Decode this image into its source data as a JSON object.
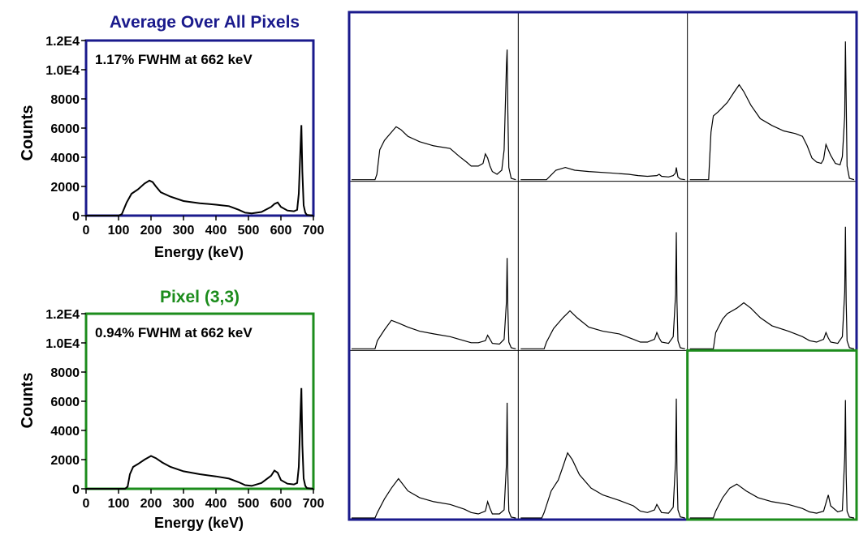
{
  "colors": {
    "average_frame": "#1a1a8c",
    "pixel_frame": "#1c8c1c",
    "grid_lines": "#000000",
    "trace": "#000000"
  },
  "chart_data": [
    {
      "type": "line",
      "id": "average",
      "title": "Average Over All Pixels",
      "annotation": "1.17% FWHM at 662 keV",
      "xlabel": "Energy (keV)",
      "ylabel": "Counts",
      "xlim": [
        0,
        700
      ],
      "ylim": [
        0,
        12000
      ],
      "x_ticks": [
        "0",
        "100",
        "200",
        "300",
        "400",
        "500",
        "600",
        "700"
      ],
      "y_ticks": [
        "0",
        "2000",
        "4000",
        "6000",
        "8000",
        "1.0E4",
        "1.2E4"
      ],
      "frame_color": "#1a1a8c",
      "series": [
        {
          "x": [
            0,
            100,
            110,
            125,
            140,
            160,
            180,
            195,
            205,
            215,
            230,
            260,
            300,
            350,
            400,
            440,
            470,
            490,
            510,
            540,
            570,
            580,
            590,
            600,
            620,
            640,
            650,
            655,
            660,
            663,
            666,
            670,
            675,
            680,
            700
          ],
          "y": [
            0,
            0,
            100,
            900,
            1500,
            1800,
            2200,
            2400,
            2300,
            2000,
            1600,
            1300,
            1000,
            850,
            750,
            650,
            400,
            200,
            150,
            250,
            600,
            800,
            900,
            600,
            350,
            300,
            400,
            1500,
            4500,
            6200,
            3000,
            700,
            200,
            50,
            0
          ]
        }
      ]
    },
    {
      "type": "line",
      "id": "pixel-3-3",
      "title": "Pixel (3,3)",
      "annotation": "0.94% FWHM at 662 keV",
      "xlabel": "Energy (keV)",
      "ylabel": "Counts",
      "xlim": [
        0,
        700
      ],
      "ylim": [
        0,
        12000
      ],
      "x_ticks": [
        "0",
        "100",
        "200",
        "300",
        "400",
        "500",
        "600",
        "700"
      ],
      "y_ticks": [
        "0",
        "2000",
        "4000",
        "6000",
        "8000",
        "1.0E4",
        "1.2E4"
      ],
      "frame_color": "#1c8c1c",
      "series": [
        {
          "x": [
            0,
            120,
            128,
            135,
            145,
            160,
            180,
            200,
            215,
            235,
            260,
            300,
            350,
            400,
            440,
            470,
            490,
            510,
            540,
            570,
            580,
            590,
            600,
            620,
            640,
            650,
            655,
            660,
            663,
            666,
            670,
            675,
            680,
            700
          ],
          "y": [
            0,
            0,
            150,
            1000,
            1500,
            1700,
            2000,
            2250,
            2100,
            1800,
            1500,
            1200,
            1000,
            850,
            700,
            450,
            250,
            200,
            400,
            900,
            1250,
            1100,
            600,
            350,
            300,
            400,
            1500,
            5000,
            6900,
            3000,
            700,
            200,
            50,
            0
          ]
        }
      ]
    },
    {
      "type": "line",
      "id": "pixel-grid",
      "rows": 3,
      "cols": 3,
      "highlight_cell": [
        3,
        3
      ],
      "xlim": [
        0,
        700
      ],
      "ylim": [
        0,
        12000
      ],
      "cells": [
        {
          "x": [
            0,
            100,
            108,
            120,
            140,
            160,
            190,
            210,
            240,
            290,
            350,
            420,
            460,
            490,
            510,
            540,
            560,
            570,
            580,
            590,
            600,
            620,
            640,
            650,
            660,
            663,
            666,
            670,
            680,
            700
          ],
          "y": [
            0,
            0,
            400,
            2200,
            2900,
            3300,
            3900,
            3700,
            3200,
            2800,
            2500,
            2300,
            1700,
            1300,
            1000,
            1000,
            1200,
            1900,
            1600,
            1000,
            600,
            400,
            700,
            2200,
            8500,
            9600,
            5000,
            900,
            100,
            0
          ]
        },
        {
          "x": [
            0,
            110,
            150,
            190,
            230,
            290,
            380,
            460,
            500,
            540,
            580,
            590,
            600,
            630,
            650,
            660,
            663,
            666,
            670,
            680,
            700
          ],
          "y": [
            0,
            0,
            700,
            900,
            700,
            600,
            500,
            400,
            300,
            250,
            300,
            400,
            250,
            200,
            300,
            500,
            900,
            600,
            200,
            50,
            0
          ]
        },
        {
          "x": [
            0,
            80,
            90,
            100,
            120,
            160,
            190,
            210,
            230,
            260,
            300,
            350,
            400,
            450,
            480,
            500,
            520,
            540,
            560,
            570,
            580,
            600,
            620,
            640,
            650,
            660,
            663,
            666,
            670,
            680,
            700
          ],
          "y": [
            0,
            0,
            3500,
            4700,
            5000,
            5700,
            6500,
            7000,
            6500,
            5500,
            4500,
            4000,
            3600,
            3400,
            3200,
            2500,
            1600,
            1300,
            1200,
            1500,
            2600,
            1800,
            1200,
            1100,
            1700,
            4700,
            10200,
            6000,
            1000,
            100,
            0
          ]
        },
        {
          "x": [
            0,
            100,
            110,
            140,
            170,
            200,
            240,
            290,
            350,
            420,
            480,
            510,
            540,
            570,
            580,
            590,
            600,
            630,
            650,
            660,
            663,
            666,
            670,
            680,
            700
          ],
          "y": [
            0,
            0,
            600,
            1400,
            2100,
            1900,
            1600,
            1300,
            1100,
            900,
            600,
            450,
            450,
            600,
            1000,
            700,
            400,
            350,
            700,
            3500,
            6700,
            3000,
            500,
            80,
            0
          ]
        },
        {
          "x": [
            0,
            100,
            110,
            140,
            180,
            210,
            240,
            290,
            350,
            420,
            480,
            510,
            540,
            570,
            580,
            590,
            600,
            630,
            650,
            660,
            663,
            666,
            670,
            680,
            700
          ],
          "y": [
            0,
            0,
            500,
            1500,
            2300,
            2800,
            2300,
            1600,
            1300,
            1100,
            700,
            500,
            500,
            700,
            1200,
            800,
            500,
            400,
            900,
            4000,
            8600,
            3500,
            600,
            80,
            0
          ]
        },
        {
          "x": [
            0,
            100,
            110,
            140,
            160,
            200,
            230,
            260,
            300,
            350,
            420,
            480,
            510,
            540,
            570,
            580,
            590,
            600,
            630,
            650,
            660,
            663,
            666,
            670,
            680,
            700
          ],
          "y": [
            0,
            0,
            1200,
            2200,
            2600,
            3000,
            3400,
            3000,
            2300,
            1700,
            1300,
            900,
            600,
            500,
            700,
            1200,
            800,
            500,
            400,
            900,
            4200,
            9000,
            3500,
            600,
            80,
            0
          ]
        },
        {
          "x": [
            0,
            100,
            110,
            140,
            170,
            200,
            240,
            290,
            350,
            420,
            480,
            510,
            540,
            570,
            580,
            590,
            600,
            630,
            650,
            660,
            663,
            666,
            670,
            680,
            700
          ],
          "y": [
            0,
            0,
            400,
            1400,
            2200,
            2900,
            2000,
            1500,
            1200,
            1000,
            650,
            400,
            300,
            500,
            1200,
            700,
            300,
            300,
            600,
            4000,
            8500,
            3200,
            500,
            60,
            0
          ]
        },
        {
          "x": [
            0,
            90,
            100,
            130,
            160,
            180,
            200,
            220,
            250,
            300,
            350,
            420,
            480,
            510,
            540,
            570,
            580,
            590,
            600,
            630,
            650,
            660,
            663,
            666,
            670,
            680,
            700
          ],
          "y": [
            0,
            0,
            400,
            2000,
            2800,
            3800,
            4800,
            4300,
            3200,
            2200,
            1700,
            1300,
            900,
            500,
            400,
            600,
            1000,
            700,
            400,
            350,
            800,
            4200,
            8800,
            3500,
            600,
            80,
            0
          ]
        },
        {
          "x": [
            0,
            100,
            110,
            140,
            170,
            200,
            240,
            290,
            350,
            420,
            480,
            510,
            540,
            570,
            580,
            590,
            600,
            630,
            650,
            660,
            663,
            666,
            670,
            680,
            700
          ],
          "y": [
            0,
            0,
            500,
            1500,
            2200,
            2500,
            2000,
            1500,
            1200,
            1000,
            700,
            450,
            350,
            500,
            1100,
            1700,
            900,
            450,
            550,
            4500,
            8700,
            3200,
            500,
            60,
            0
          ]
        }
      ]
    }
  ]
}
